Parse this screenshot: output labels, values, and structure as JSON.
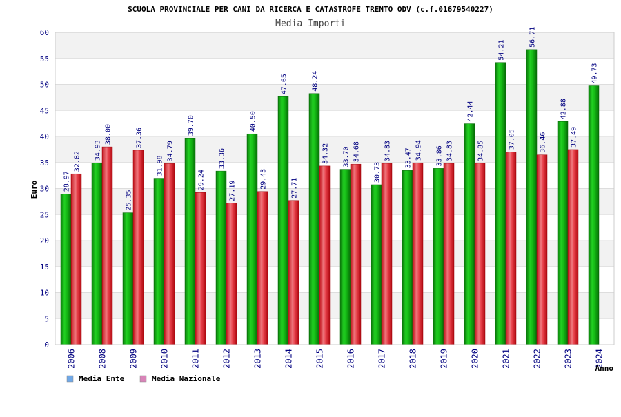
{
  "chart_data": {
    "type": "bar",
    "title": "SCUOLA PROVINCIALE PER CANI DA RICERCA E CATASTROFE TRENTO ODV (c.f.01679540227)",
    "subtitle": "Media Importi",
    "xlabel": "Anno",
    "ylabel": "Euro",
    "ylim": [
      0,
      60
    ],
    "yticks": [
      0,
      5,
      10,
      15,
      20,
      25,
      30,
      35,
      40,
      45,
      50,
      55,
      60
    ],
    "grid": true,
    "legend_position": "bottom-left",
    "categories": [
      "2006",
      "2008",
      "2009",
      "2010",
      "2011",
      "2012",
      "2013",
      "2014",
      "2015",
      "2016",
      "2017",
      "2018",
      "2019",
      "2020",
      "2021",
      "2022",
      "2023",
      "2024"
    ],
    "series": [
      {
        "name": "Media Ente",
        "legend_color": "#6fa8e8",
        "bar_color": "#14b814",
        "values": [
          28.97,
          34.93,
          25.35,
          31.98,
          39.7,
          33.36,
          40.5,
          47.65,
          48.24,
          33.7,
          30.73,
          33.47,
          33.86,
          42.44,
          54.21,
          56.71,
          42.88,
          49.73
        ],
        "labels": [
          "28.97",
          "34.93",
          "25.35",
          "31.98",
          "39.70",
          "33.36",
          "40.50",
          "47.65",
          "48.24",
          "33.70",
          "30.73",
          "33.47",
          "33.86",
          "42.44",
          "54.21",
          "56.71",
          "42.88",
          "49.73"
        ]
      },
      {
        "name": "Media Nazionale",
        "legend_color": "#d884b8",
        "bar_color": "#e8323c",
        "values": [
          32.82,
          38.0,
          37.36,
          34.79,
          29.24,
          27.19,
          29.43,
          27.71,
          34.32,
          34.68,
          34.83,
          34.94,
          34.83,
          34.85,
          37.05,
          36.46,
          37.49,
          null
        ],
        "labels": [
          "32.82",
          "38.00",
          "37.36",
          "34.79",
          "29.24",
          "27.19",
          "29.43",
          "27.71",
          "34.32",
          "34.68",
          "34.83",
          "34.94",
          "34.83",
          "34.85",
          "37.05",
          "36.46",
          "37.49",
          null
        ]
      }
    ]
  }
}
